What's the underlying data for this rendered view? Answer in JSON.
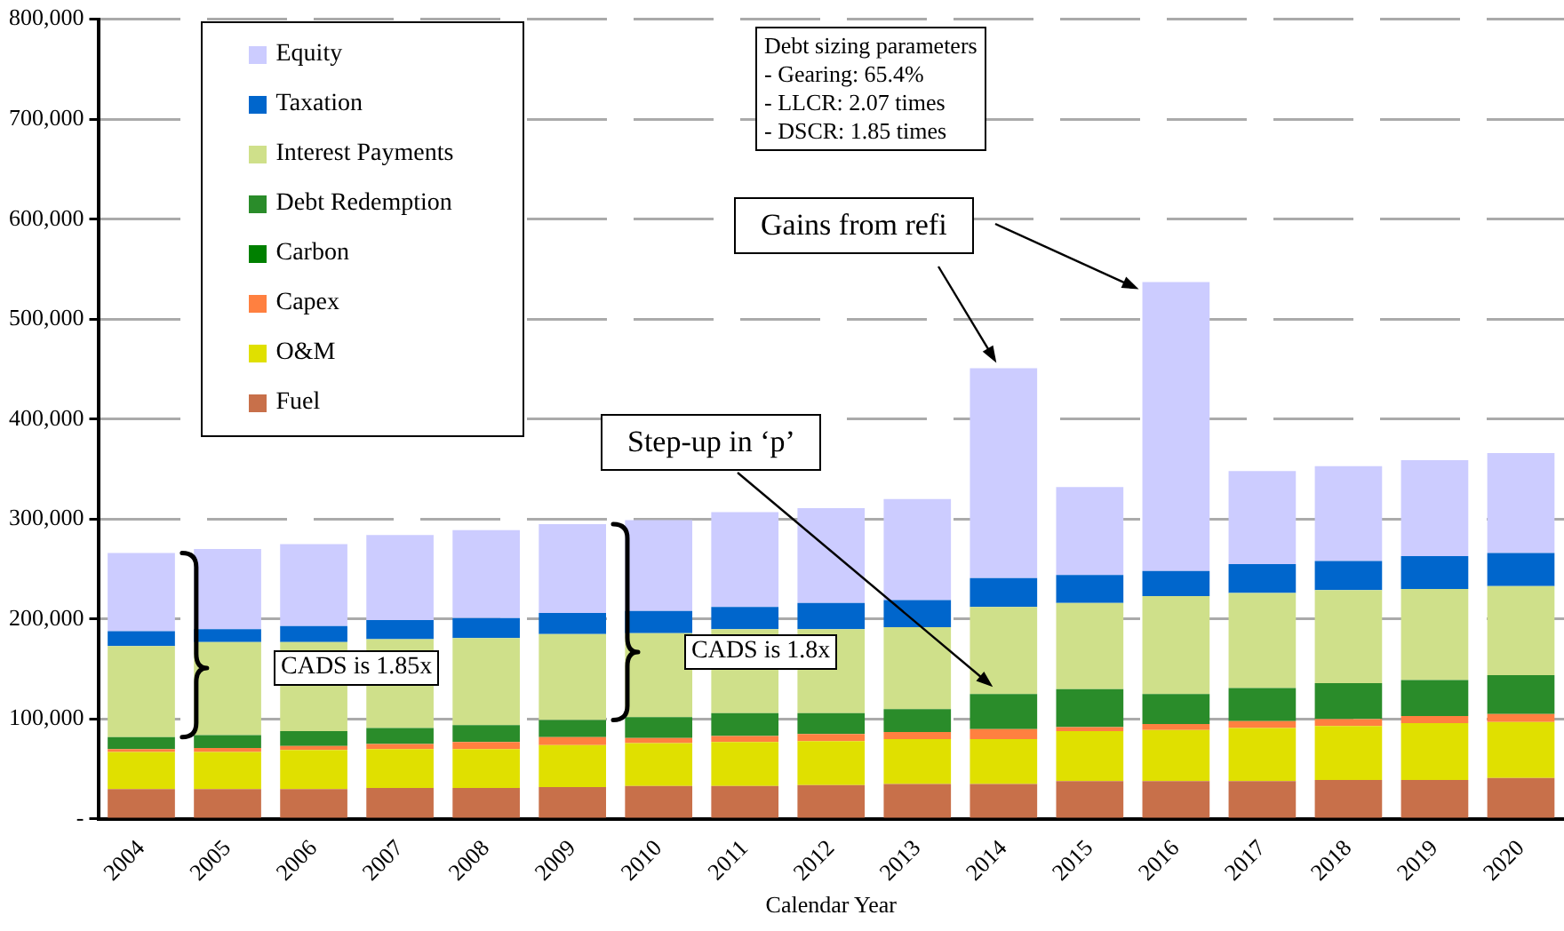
{
  "chart_data": {
    "type": "bar",
    "stacked": true,
    "xlabel": "Calendar Year",
    "categories": [
      "2004",
      "2005",
      "2006",
      "2007",
      "2008",
      "2009",
      "2010",
      "2011",
      "2012",
      "2013",
      "2014",
      "2015",
      "2016",
      "2017",
      "2018",
      "2019",
      "2020"
    ],
    "series": [
      {
        "name": "Fuel",
        "color": "#c8704a",
        "values": [
          30000,
          30000,
          30000,
          31000,
          31000,
          32000,
          33000,
          33000,
          34000,
          35000,
          35000,
          38000,
          38000,
          38000,
          39000,
          39000,
          41000
        ]
      },
      {
        "name": "O&M",
        "color": "#e0e000",
        "values": [
          37000,
          37000,
          39000,
          39000,
          39000,
          42000,
          43000,
          44000,
          44000,
          45000,
          45000,
          50000,
          51000,
          53000,
          54000,
          57000,
          56000
        ]
      },
      {
        "name": "Capex",
        "color": "#ff8040",
        "values": [
          3000,
          4000,
          4000,
          5000,
          7000,
          8000,
          5000,
          6000,
          7000,
          7000,
          10000,
          4000,
          6000,
          7000,
          7000,
          7000,
          8000
        ]
      },
      {
        "name": "Carbon",
        "color": "#008000",
        "values": [
          0,
          0,
          0,
          0,
          0,
          0,
          0,
          0,
          0,
          0,
          0,
          0,
          0,
          0,
          0,
          0,
          0
        ]
      },
      {
        "name": "Debt Redemption",
        "color": "#2a8c2a",
        "values": [
          12000,
          13000,
          15000,
          16000,
          17000,
          17000,
          21000,
          23000,
          21000,
          23000,
          35000,
          38000,
          30000,
          33000,
          36000,
          36000,
          39000
        ]
      },
      {
        "name": "Interest Payments",
        "color": "#cfe08a",
        "values": [
          91000,
          93000,
          89000,
          89000,
          87000,
          86000,
          84000,
          84000,
          84000,
          82000,
          87000,
          86000,
          98000,
          95000,
          93000,
          91000,
          89000
        ]
      },
      {
        "name": "Taxation",
        "color": "#0066cc",
        "values": [
          15000,
          13000,
          16000,
          19000,
          20000,
          21000,
          22000,
          22000,
          26000,
          27000,
          29000,
          28000,
          25000,
          29000,
          29000,
          33000,
          33000
        ]
      },
      {
        "name": "Equity",
        "color": "#ccccff",
        "values": [
          78000,
          80000,
          82000,
          85000,
          88000,
          89000,
          91000,
          95000,
          95000,
          101000,
          210000,
          88000,
          289000,
          93000,
          95000,
          96000,
          100000
        ]
      }
    ],
    "ylim": [
      0,
      800000
    ],
    "yticks": [
      {
        "value": 0,
        "label": "-"
      },
      {
        "value": 100000,
        "label": "100,000"
      },
      {
        "value": 200000,
        "label": "200,000"
      },
      {
        "value": 300000,
        "label": "300,000"
      },
      {
        "value": 400000,
        "label": "400,000"
      },
      {
        "value": 500000,
        "label": "500,000"
      },
      {
        "value": 600000,
        "label": "600,000"
      },
      {
        "value": 700000,
        "label": "700,000"
      },
      {
        "value": 800000,
        "label": "800,000"
      }
    ],
    "grid": "y",
    "legend": "top left",
    "annotations": [
      "Debt sizing parameters\n - Gearing: 65.4%\n - LLCR: 2.07 times\n - DSCR: 1.85 times",
      "Gains from refi",
      "Step-up in ‘p’",
      "CADS is 1.85x",
      "CADS is 1.8x"
    ]
  }
}
